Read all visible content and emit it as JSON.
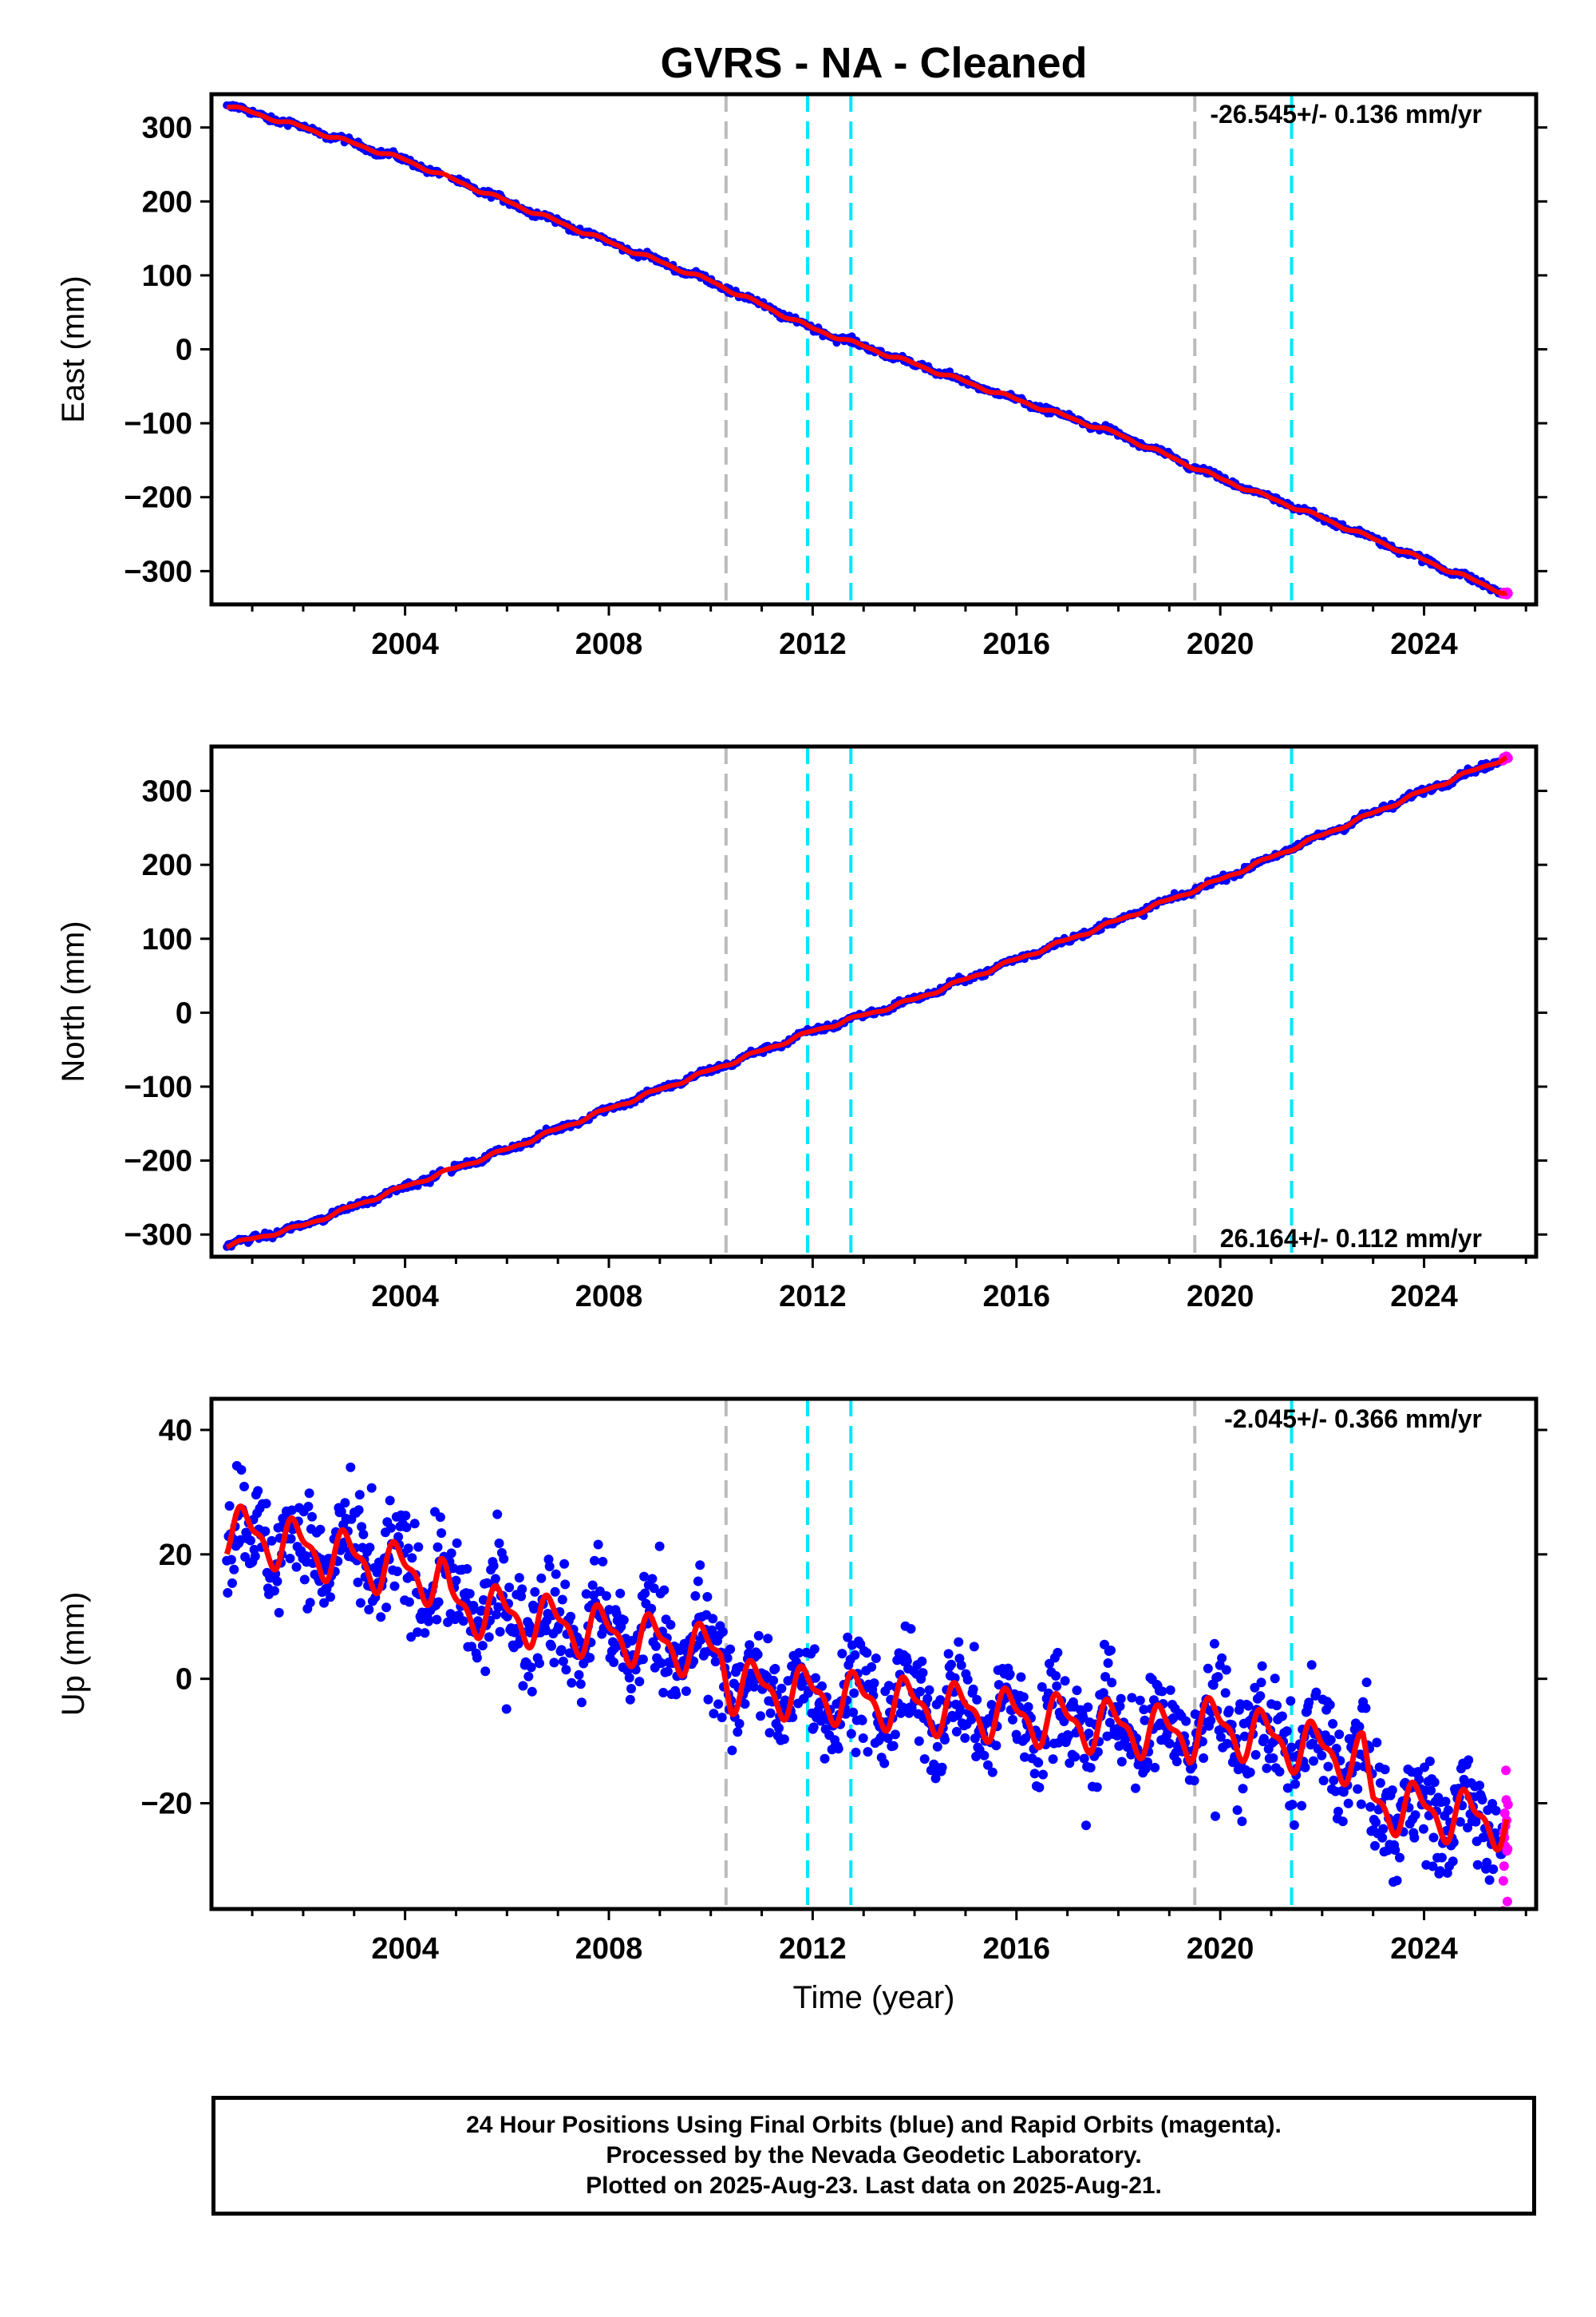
{
  "title": "GVRS  - NA - Cleaned",
  "xlabel": "Time (year)",
  "footer": {
    "line1": "24 Hour Positions Using Final Orbits (blue) and Rapid Orbits (magenta).",
    "line2": "Processed by the Nevada Geodetic Laboratory.",
    "line3": "Plotted on 2025-Aug-23. Last data on 2025-Aug-21."
  },
  "colors": {
    "final": "#0000ff",
    "rapid": "#ff00ff",
    "model": "#ff0000",
    "equipment_change": "#bbbbbb",
    "earthquake": "#00e5ff"
  },
  "chart_data": [
    {
      "type": "scatter",
      "ylabel": "East (mm)",
      "rate_label": "-26.545+/- 0.136 mm/yr",
      "rate_position": "top-right",
      "xlim": [
        2000.2,
        2026.2
      ],
      "ylim": [
        -345,
        345
      ],
      "xticks": [
        2004,
        2008,
        2012,
        2016,
        2020,
        2024
      ],
      "yticks": [
        -300,
        -200,
        -100,
        0,
        100,
        200,
        300
      ],
      "ytick_labels": [
        "−300",
        "−200",
        "−100",
        "0",
        "100",
        "200",
        "300"
      ],
      "gray_lines": [
        2010.3,
        2019.5
      ],
      "cyan_lines": [
        2011.9,
        2012.75,
        2021.4
      ],
      "series": [
        {
          "x": [
            2000.5,
            2002,
            2004,
            2006,
            2008,
            2010,
            2012,
            2014,
            2016,
            2018,
            2020,
            2022,
            2024,
            2025.6
          ],
          "y": [
            330,
            300,
            256,
            200,
            145,
            92,
            28,
            -20,
            -68,
            -115,
            -175,
            -228,
            -285,
            -330
          ]
        }
      ]
    },
    {
      "type": "scatter",
      "ylabel": "North (mm)",
      "rate_label": "26.164+/- 0.112 mm/yr",
      "rate_position": "bottom-right",
      "xlim": [
        2000.2,
        2026.2
      ],
      "ylim": [
        -330,
        360
      ],
      "xticks": [
        2004,
        2008,
        2012,
        2016,
        2020,
        2024
      ],
      "yticks": [
        -300,
        -200,
        -100,
        0,
        100,
        200,
        300
      ],
      "ytick_labels": [
        "−300",
        "−200",
        "−100",
        "0",
        "100",
        "200",
        "300"
      ],
      "gray_lines": [
        2010.3,
        2019.5
      ],
      "cyan_lines": [
        2011.9,
        2012.75,
        2021.4
      ],
      "series": [
        {
          "x": [
            2000.5,
            2002,
            2004,
            2006,
            2008,
            2010,
            2012,
            2014,
            2016,
            2018,
            2020,
            2022,
            2024,
            2025.6
          ],
          "y": [
            -315,
            -288,
            -235,
            -185,
            -130,
            -78,
            -25,
            18,
            72,
            125,
            180,
            240,
            300,
            345
          ]
        }
      ]
    },
    {
      "type": "scatter",
      "ylabel": "Up (mm)",
      "rate_label": "-2.045+/- 0.366 mm/yr",
      "rate_position": "top-right",
      "xlim": [
        2000.2,
        2026.2
      ],
      "ylim": [
        -37,
        45
      ],
      "xticks": [
        2004,
        2008,
        2012,
        2016,
        2020,
        2024
      ],
      "yticks": [
        -20,
        0,
        20,
        40
      ],
      "ytick_labels": [
        "−20",
        "0",
        "20",
        "40"
      ],
      "gray_lines": [
        2010.3,
        2019.5
      ],
      "cyan_lines": [
        2011.9,
        2012.75,
        2021.4
      ],
      "steps": [
        2004.8,
        2010.3,
        2022.9
      ],
      "series": [
        {
          "x": [
            2000.5,
            2004.7,
            2004.9,
            2010.2,
            2010.4,
            2019.4,
            2019.6,
            2022.8,
            2023.0,
            2025.6
          ],
          "y": [
            24,
            16,
            12,
            4,
            -1,
            -9,
            -7,
            -13,
            -20,
            -23
          ]
        }
      ]
    }
  ]
}
